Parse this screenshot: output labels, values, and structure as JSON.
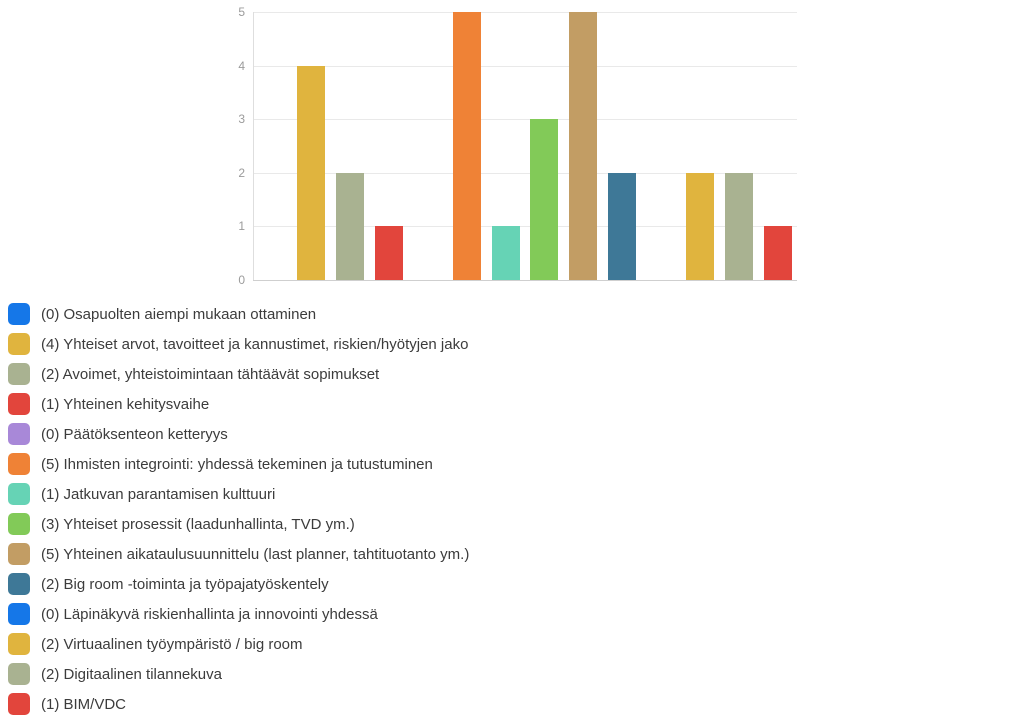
{
  "chart_data": {
    "type": "bar",
    "title": "",
    "xlabel": "",
    "ylabel": "",
    "categories": [
      "(0) Osapuolten aiempi mukaan ottaminen",
      "(4) Yhteiset arvot, tavoitteet ja kannustimet, riskien/hyötyjen jako",
      "(2) Avoimet, yhteistoimintaan tähtäävät sopimukset",
      "(1) Yhteinen kehitysvaihe",
      "(0) Päätöksenteon ketteryys",
      "(5) Ihmisten integrointi: yhdessä tekeminen ja tutustuminen",
      "(1) Jatkuvan parantamisen kulttuuri",
      "(3) Yhteiset prosessit (laadunhallinta, TVD ym.)",
      "(5) Yhteinen aikataulusuunnittelu (last planner, tahtituotanto ym.)",
      "(2) Big room -toiminta ja työpajatyöskentely",
      "(0) Läpinäkyvä riskienhallinta ja innovointi yhdessä",
      "(2) Virtuaalinen työympäristö / big room",
      "(2) Digitaalinen tilannekuva",
      "(1) BIM/VDC"
    ],
    "values": [
      0,
      4,
      2,
      1,
      0,
      5,
      1,
      3,
      5,
      2,
      0,
      2,
      2,
      1
    ],
    "colors": [
      "#1577e8",
      "#e0b43e",
      "#a9b291",
      "#e2453c",
      "#a888d8",
      "#ef8236",
      "#66d3b5",
      "#82ca58",
      "#c29d64",
      "#3e7897",
      "#1577e8",
      "#e0b43e",
      "#a9b291",
      "#e2453c"
    ],
    "ylim": [
      0,
      5
    ],
    "yticks": [
      "0",
      "1",
      "2",
      "3",
      "4",
      "5"
    ],
    "grid": true,
    "legend_position": "bottom-left",
    "x_tick_labels_shown": false
  },
  "theme": {
    "background": "#ffffff",
    "grid_color": "#e9e9e9",
    "axis_color": "#cfcfcf",
    "tick_label_color": "#9b9b9b",
    "legend_text_color": "#3c3c3c"
  }
}
